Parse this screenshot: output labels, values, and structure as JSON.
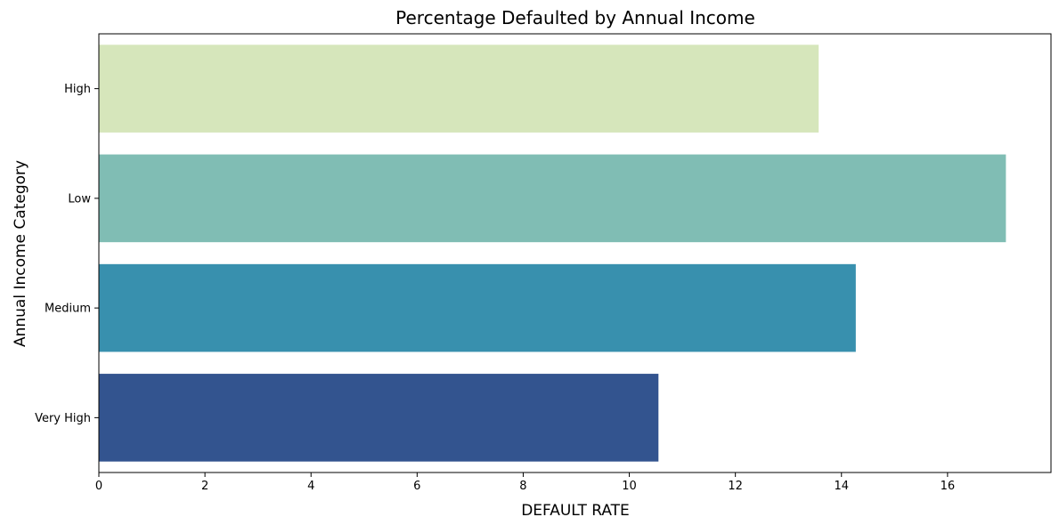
{
  "chart_data": {
    "type": "bar",
    "orientation": "horizontal",
    "title": "Percentage Defaulted by Annual Income",
    "xlabel": "DEFAULT RATE",
    "ylabel": "Annual Income Category",
    "categories": [
      "High",
      "Low",
      "Medium",
      "Very High"
    ],
    "values": [
      13.57,
      17.1,
      14.27,
      10.55
    ],
    "colors": [
      "#d6e6bb",
      "#80bdb4",
      "#3890ae",
      "#33548f"
    ],
    "xlim": [
      0,
      17.95
    ],
    "xticks": [
      0,
      2,
      4,
      6,
      8,
      10,
      12,
      14,
      16
    ],
    "grid": false,
    "legend": "none"
  }
}
